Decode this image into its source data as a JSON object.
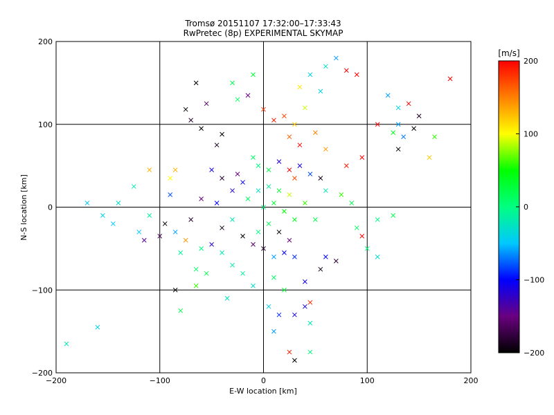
{
  "chart_data": {
    "type": "scatter",
    "title_line1": "Tromsø 20151107 17:32:00–17:33:43",
    "title_line2": "RwPretec (8p) EXPERIMENTAL SKYMAP",
    "xlabel": "E-W location [km]",
    "ylabel": "N-S location [km]",
    "xlim": [
      -200,
      200
    ],
    "ylim": [
      -200,
      200
    ],
    "xticks": [
      -200,
      -100,
      0,
      100,
      200
    ],
    "yticks": [
      -200,
      -100,
      0,
      100,
      200
    ],
    "xtick_labels": [
      "−200",
      "−100",
      "0",
      "100",
      "200"
    ],
    "ytick_labels": [
      "200",
      "100",
      "0",
      "−100",
      "−200"
    ],
    "grid": true,
    "marker_legend": "× large markers and small dots, colored by velocity",
    "colorbar": {
      "unit_label": "[m/s]",
      "range": [
        -200,
        200
      ],
      "ticks": [
        200,
        100,
        0,
        -100,
        -200
      ],
      "tick_labels": [
        "200",
        "100",
        "0",
        "−100",
        "−200"
      ],
      "colormap": [
        "#000000",
        "#6a0080",
        "#0000ff",
        "#00c8ff",
        "#00ff80",
        "#00ff00",
        "#ffff00",
        "#ff8000",
        "#ff0000"
      ]
    },
    "points": [
      {
        "x": -65,
        "y": 150,
        "v": -200,
        "m": "x"
      },
      {
        "x": -75,
        "y": 118,
        "v": -200,
        "m": "x"
      },
      {
        "x": -70,
        "y": 105,
        "v": -180,
        "m": "x"
      },
      {
        "x": -60,
        "y": 95,
        "v": -200,
        "m": "x"
      },
      {
        "x": -45,
        "y": 75,
        "v": -190,
        "m": "x"
      },
      {
        "x": -40,
        "y": 88,
        "v": -200,
        "m": "x"
      },
      {
        "x": -55,
        "y": 125,
        "v": -160,
        "m": "x"
      },
      {
        "x": -30,
        "y": 150,
        "v": 20,
        "m": "x"
      },
      {
        "x": -25,
        "y": 130,
        "v": 10,
        "m": "x"
      },
      {
        "x": -15,
        "y": 135,
        "v": -150,
        "m": "x"
      },
      {
        "x": -10,
        "y": 160,
        "v": 30,
        "m": "x"
      },
      {
        "x": 0,
        "y": 118,
        "v": 180,
        "m": "x"
      },
      {
        "x": 10,
        "y": 105,
        "v": 190,
        "m": "x"
      },
      {
        "x": 20,
        "y": 110,
        "v": 170,
        "m": "x"
      },
      {
        "x": 30,
        "y": 100,
        "v": 120,
        "m": "x"
      },
      {
        "x": 40,
        "y": 120,
        "v": 90,
        "m": "x"
      },
      {
        "x": 45,
        "y": 160,
        "v": -40,
        "m": "x"
      },
      {
        "x": 55,
        "y": 140,
        "v": -40,
        "m": "x"
      },
      {
        "x": 60,
        "y": 170,
        "v": -30,
        "m": "x"
      },
      {
        "x": 70,
        "y": 180,
        "v": -60,
        "m": "x"
      },
      {
        "x": 80,
        "y": 165,
        "v": 200,
        "m": "x"
      },
      {
        "x": 90,
        "y": 160,
        "v": 200,
        "m": "x"
      },
      {
        "x": 35,
        "y": 145,
        "v": 110,
        "m": "x"
      },
      {
        "x": 25,
        "y": 85,
        "v": 160,
        "m": "x"
      },
      {
        "x": 35,
        "y": 75,
        "v": 200,
        "m": "x"
      },
      {
        "x": 50,
        "y": 90,
        "v": 150,
        "m": "x"
      },
      {
        "x": 60,
        "y": 70,
        "v": 140,
        "m": "x"
      },
      {
        "x": 80,
        "y": 50,
        "v": 190,
        "m": "x"
      },
      {
        "x": 95,
        "y": 60,
        "v": 200,
        "m": "x"
      },
      {
        "x": 110,
        "y": 100,
        "v": 200,
        "m": "x"
      },
      {
        "x": 125,
        "y": 90,
        "v": 40,
        "m": "x"
      },
      {
        "x": 130,
        "y": 100,
        "v": -60,
        "m": "x"
      },
      {
        "x": 135,
        "y": 85,
        "v": -70,
        "m": "x"
      },
      {
        "x": 130,
        "y": 120,
        "v": -40,
        "m": "x"
      },
      {
        "x": 140,
        "y": 125,
        "v": 200,
        "m": "x"
      },
      {
        "x": 150,
        "y": 110,
        "v": -190,
        "m": "x"
      },
      {
        "x": 145,
        "y": 95,
        "v": -200,
        "m": "x"
      },
      {
        "x": 165,
        "y": 85,
        "v": 60,
        "m": "x"
      },
      {
        "x": 180,
        "y": 155,
        "v": 200,
        "m": "x"
      },
      {
        "x": 130,
        "y": 70,
        "v": -200,
        "m": "x"
      },
      {
        "x": 120,
        "y": 135,
        "v": -60,
        "m": "x"
      },
      {
        "x": 160,
        "y": 60,
        "v": 120,
        "m": "x"
      },
      {
        "x": -85,
        "y": 45,
        "v": 130,
        "m": "x"
      },
      {
        "x": -90,
        "y": 35,
        "v": 100,
        "m": "x"
      },
      {
        "x": -110,
        "y": 45,
        "v": 130,
        "m": "x"
      },
      {
        "x": -125,
        "y": 25,
        "v": -20,
        "m": "x"
      },
      {
        "x": -140,
        "y": 5,
        "v": -30,
        "m": "x"
      },
      {
        "x": -155,
        "y": -10,
        "v": -40,
        "m": "x"
      },
      {
        "x": -170,
        "y": 5,
        "v": -50,
        "m": "x"
      },
      {
        "x": -145,
        "y": -20,
        "v": -50,
        "m": "x"
      },
      {
        "x": -160,
        "y": -145,
        "v": -40,
        "m": "x"
      },
      {
        "x": -190,
        "y": -165,
        "v": -20,
        "m": "x"
      },
      {
        "x": -90,
        "y": 15,
        "v": -80,
        "m": "x"
      },
      {
        "x": -95,
        "y": -20,
        "v": -200,
        "m": "x"
      },
      {
        "x": -85,
        "y": -30,
        "v": -60,
        "m": "x"
      },
      {
        "x": -80,
        "y": -55,
        "v": -10,
        "m": "x"
      },
      {
        "x": -75,
        "y": -40,
        "v": 140,
        "m": "x"
      },
      {
        "x": -60,
        "y": -50,
        "v": 0,
        "m": "x"
      },
      {
        "x": -50,
        "y": -45,
        "v": -120,
        "m": "x"
      },
      {
        "x": -40,
        "y": -55,
        "v": -20,
        "m": "x"
      },
      {
        "x": -55,
        "y": -80,
        "v": 20,
        "m": "x"
      },
      {
        "x": -65,
        "y": -75,
        "v": 10,
        "m": "x"
      },
      {
        "x": -50,
        "y": 45,
        "v": -110,
        "m": "x"
      },
      {
        "x": -40,
        "y": 35,
        "v": -180,
        "m": "x"
      },
      {
        "x": -30,
        "y": 20,
        "v": -120,
        "m": "x"
      },
      {
        "x": -20,
        "y": 30,
        "v": -100,
        "m": "x"
      },
      {
        "x": -25,
        "y": 40,
        "v": -150,
        "m": "x"
      },
      {
        "x": -10,
        "y": 60,
        "v": 10,
        "m": "x"
      },
      {
        "x": -5,
        "y": 50,
        "v": 0,
        "m": "x"
      },
      {
        "x": 5,
        "y": 45,
        "v": 20,
        "m": "x"
      },
      {
        "x": 15,
        "y": 55,
        "v": -120,
        "m": "x"
      },
      {
        "x": 25,
        "y": 45,
        "v": 200,
        "m": "x"
      },
      {
        "x": 30,
        "y": 35,
        "v": 170,
        "m": "x"
      },
      {
        "x": 35,
        "y": 50,
        "v": -110,
        "m": "x"
      },
      {
        "x": 45,
        "y": 40,
        "v": -80,
        "m": "x"
      },
      {
        "x": 55,
        "y": 35,
        "v": -190,
        "m": "x"
      },
      {
        "x": 60,
        "y": 20,
        "v": -20,
        "m": "x"
      },
      {
        "x": 75,
        "y": 15,
        "v": 60,
        "m": "x"
      },
      {
        "x": 85,
        "y": 5,
        "v": 20,
        "m": "x"
      },
      {
        "x": 90,
        "y": -25,
        "v": 10,
        "m": "x"
      },
      {
        "x": 95,
        "y": -35,
        "v": 200,
        "m": "x"
      },
      {
        "x": 100,
        "y": -50,
        "v": 0,
        "m": "x"
      },
      {
        "x": 110,
        "y": -60,
        "v": -30,
        "m": "x"
      },
      {
        "x": 110,
        "y": -15,
        "v": 0,
        "m": "x"
      },
      {
        "x": 125,
        "y": -10,
        "v": 20,
        "m": "x"
      },
      {
        "x": 60,
        "y": -60,
        "v": -100,
        "m": "x"
      },
      {
        "x": 70,
        "y": -65,
        "v": -180,
        "m": "x"
      },
      {
        "x": 55,
        "y": -75,
        "v": -190,
        "m": "x"
      },
      {
        "x": 40,
        "y": -90,
        "v": -110,
        "m": "x"
      },
      {
        "x": 30,
        "y": -60,
        "v": -90,
        "m": "x"
      },
      {
        "x": 20,
        "y": -55,
        "v": -100,
        "m": "x"
      },
      {
        "x": 10,
        "y": -60,
        "v": -60,
        "m": "x"
      },
      {
        "x": 0,
        "y": -50,
        "v": -180,
        "m": "x"
      },
      {
        "x": -10,
        "y": -45,
        "v": -160,
        "m": "x"
      },
      {
        "x": -20,
        "y": -35,
        "v": -200,
        "m": "x"
      },
      {
        "x": -5,
        "y": -30,
        "v": 0,
        "m": "x"
      },
      {
        "x": 5,
        "y": -20,
        "v": 20,
        "m": "x"
      },
      {
        "x": 15,
        "y": -30,
        "v": -200,
        "m": "x"
      },
      {
        "x": 25,
        "y": -40,
        "v": -150,
        "m": "x"
      },
      {
        "x": -15,
        "y": 10,
        "v": 10,
        "m": "x"
      },
      {
        "x": 0,
        "y": 0,
        "v": 0,
        "m": "x"
      },
      {
        "x": 10,
        "y": 5,
        "v": 30,
        "m": "x"
      },
      {
        "x": 20,
        "y": -5,
        "v": 50,
        "m": "x"
      },
      {
        "x": 30,
        "y": -15,
        "v": 40,
        "m": "x"
      },
      {
        "x": -5,
        "y": 20,
        "v": -30,
        "m": "x"
      },
      {
        "x": 5,
        "y": 25,
        "v": -10,
        "m": "x"
      },
      {
        "x": 15,
        "y": 20,
        "v": 30,
        "m": "x"
      },
      {
        "x": 25,
        "y": 15,
        "v": 90,
        "m": "x"
      },
      {
        "x": 40,
        "y": 5,
        "v": 60,
        "m": "x"
      },
      {
        "x": 50,
        "y": -15,
        "v": 20,
        "m": "x"
      },
      {
        "x": -30,
        "y": -15,
        "v": -20,
        "m": "x"
      },
      {
        "x": -40,
        "y": -25,
        "v": -190,
        "m": "x"
      },
      {
        "x": -30,
        "y": -70,
        "v": -20,
        "m": "x"
      },
      {
        "x": -20,
        "y": -80,
        "v": -10,
        "m": "x"
      },
      {
        "x": -10,
        "y": -95,
        "v": -30,
        "m": "x"
      },
      {
        "x": 10,
        "y": -85,
        "v": 10,
        "m": "x"
      },
      {
        "x": 20,
        "y": -100,
        "v": 30,
        "m": "x"
      },
      {
        "x": 40,
        "y": -120,
        "v": -110,
        "m": "x"
      },
      {
        "x": 45,
        "y": -115,
        "v": 180,
        "m": "x"
      },
      {
        "x": 30,
        "y": -130,
        "v": -110,
        "m": "x"
      },
      {
        "x": 15,
        "y": -130,
        "v": -90,
        "m": "x"
      },
      {
        "x": 5,
        "y": -120,
        "v": -40,
        "m": "x"
      },
      {
        "x": 10,
        "y": -150,
        "v": -60,
        "m": "x"
      },
      {
        "x": 25,
        "y": -175,
        "v": 190,
        "m": "x"
      },
      {
        "x": 30,
        "y": -185,
        "v": -200,
        "m": "x"
      },
      {
        "x": 45,
        "y": -175,
        "v": 0,
        "m": "x"
      },
      {
        "x": 45,
        "y": -140,
        "v": -20,
        "m": "x"
      },
      {
        "x": -80,
        "y": -125,
        "v": 20,
        "m": "x"
      },
      {
        "x": -85,
        "y": -100,
        "v": -200,
        "m": "x"
      },
      {
        "x": -65,
        "y": -95,
        "v": 60,
        "m": "x"
      },
      {
        "x": -35,
        "y": -110,
        "v": -20,
        "m": "x"
      },
      {
        "x": -45,
        "y": 5,
        "v": -100,
        "m": "x"
      },
      {
        "x": -60,
        "y": 10,
        "v": -150,
        "m": "x"
      },
      {
        "x": -70,
        "y": -15,
        "v": -180,
        "m": "x"
      },
      {
        "x": -100,
        "y": -35,
        "v": -170,
        "m": "x"
      },
      {
        "x": -115,
        "y": -40,
        "v": -140,
        "m": "x"
      },
      {
        "x": -110,
        "y": -10,
        "v": -10,
        "m": "x"
      },
      {
        "x": -120,
        "y": -30,
        "v": -50,
        "m": "x"
      }
    ]
  },
  "figure_name": "Tromsø skymap"
}
